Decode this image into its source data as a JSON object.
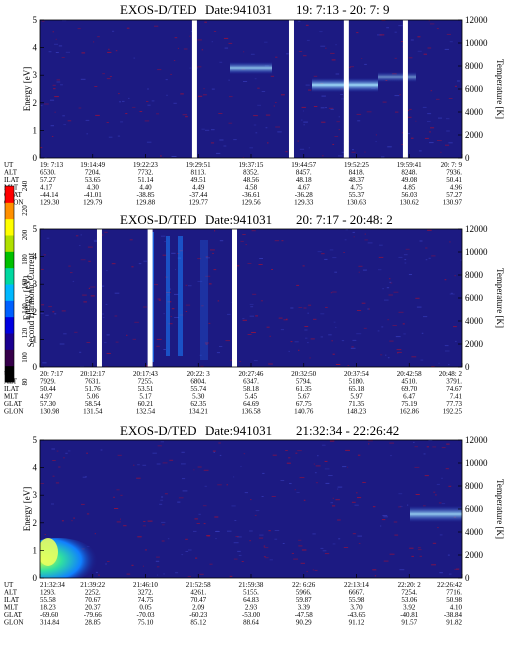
{
  "panels": [
    {
      "title": "EXOS-D/TED",
      "date_label": "Date:941031",
      "time_range": "19: 7:13 - 20: 7: 9",
      "ylabel_left": "Energy [eV]",
      "ylabel_right": "Temperature [K]",
      "ylim": [
        0,
        5
      ],
      "yticks_left": [
        "0",
        "1",
        "2",
        "3",
        "4",
        "5"
      ],
      "yticks_right": [
        "0",
        "2000",
        "4000",
        "6000",
        "8000",
        "10000",
        "12000"
      ],
      "gaps": [
        0.36,
        0.59,
        0.72,
        0.86
      ],
      "table_rows": [
        {
          "label": "UT",
          "values": [
            "19: 7:13",
            "19:14:49",
            "19:22:23",
            "19:29:51",
            "19:37:15",
            "19:44:57",
            "19:52:25",
            "19:59:41",
            "20: 7: 9"
          ]
        },
        {
          "label": "ALT",
          "values": [
            "6530.",
            "7204.",
            "7732.",
            "8113.",
            "8352.",
            "8457.",
            "8418.",
            "8248.",
            "7936."
          ]
        },
        {
          "label": "ILAT",
          "values": [
            "57.27",
            "53.65",
            "51.14",
            "49.51",
            "48.56",
            "48.18",
            "48.37",
            "49.08",
            "50.41"
          ]
        },
        {
          "label": "MLT",
          "values": [
            "4.17",
            "4.30",
            "4.40",
            "4.49",
            "4.58",
            "4.67",
            "4.75",
            "4.85",
            "4.96"
          ]
        },
        {
          "label": "GLAT",
          "values": [
            "-44.14",
            "-41.01",
            "-38.85",
            "-37.44",
            "-36.61",
            "-36.28",
            "55.37",
            "56.03",
            "57.27"
          ]
        },
        {
          "label": "GLON",
          "values": [
            "129.30",
            "129.79",
            "129.88",
            "129.77",
            "129.56",
            "129.33",
            "130.63",
            "130.62",
            "130.97"
          ]
        }
      ]
    },
    {
      "title": "EXOS-D/TED",
      "date_label": "Date:941031",
      "time_range": "20: 7:17 - 20:48: 2",
      "ylabel_left": "Energy [eV]",
      "ylabel_right": "Temperature [K]",
      "ylim": [
        0,
        5
      ],
      "yticks_left": [
        "0",
        "1",
        "2",
        "3",
        "4",
        "5"
      ],
      "yticks_right": [
        "0",
        "2000",
        "4000",
        "6000",
        "8000",
        "10000",
        "12000"
      ],
      "gaps": [
        0.135,
        0.255,
        0.455
      ],
      "table_rows": [
        {
          "label": "UT",
          "values": [
            "20: 7:17",
            "20:12:17",
            "20:17:43",
            "20:22: 3",
            "20:27:46",
            "20:32:50",
            "20:37:54",
            "20:42:58",
            "20:48: 2"
          ]
        },
        {
          "label": "ALT",
          "values": [
            "7929.",
            "7631.",
            "7255.",
            "6804.",
            "6347.",
            "5794.",
            "5180.",
            "4510.",
            "3791."
          ]
        },
        {
          "label": "ILAT",
          "values": [
            "50.44",
            "51.76",
            "53.51",
            "55.74",
            "58.18",
            "61.35",
            "65.18",
            "69.70",
            "74.67"
          ]
        },
        {
          "label": "MLT",
          "values": [
            "4.97",
            "5.06",
            "5.17",
            "5.30",
            "5.45",
            "5.67",
            "5.97",
            "6.47",
            "7.41"
          ]
        },
        {
          "label": "GLAT",
          "values": [
            "57.30",
            "58.54",
            "60.21",
            "62.35",
            "64.69",
            "67.75",
            "71.35",
            "75.19",
            "77.73"
          ]
        },
        {
          "label": "GLON",
          "values": [
            "130.98",
            "131.54",
            "132.54",
            "134.21",
            "136.58",
            "140.76",
            "148.23",
            "162.86",
            "192.25"
          ]
        }
      ]
    },
    {
      "title": "EXOS-D/TED",
      "date_label": "Date:941031",
      "time_range": "21:32:34 - 22:26:42",
      "ylabel_left": "Energy [eV]",
      "ylabel_right": "Temperature [K]",
      "ylim": [
        0,
        5
      ],
      "yticks_left": [
        "0",
        "1",
        "2",
        "3",
        "4",
        "5"
      ],
      "yticks_right": [
        "0",
        "2000",
        "4000",
        "6000",
        "8000",
        "10000",
        "12000"
      ],
      "gaps": [],
      "table_rows": [
        {
          "label": "UT",
          "values": [
            "21:32:34",
            "21:39:22",
            "21:46:10",
            "21:52:58",
            "21:59:38",
            "22: 6:26",
            "22:13:14",
            "22:20: 2",
            "22:26:42"
          ]
        },
        {
          "label": "ALT",
          "values": [
            "1293.",
            "2252.",
            "3272.",
            "4261.",
            "5155.",
            "5966.",
            "6667.",
            "7254.",
            "7716."
          ]
        },
        {
          "label": "ILAT",
          "values": [
            "55.58",
            "70.67",
            "74.75",
            "70.47",
            "64.83",
            "59.87",
            "55.98",
            "53.06",
            "50.98"
          ]
        },
        {
          "label": "MLT",
          "values": [
            "18.23",
            "20.37",
            "0.05",
            "2.09",
            "2.93",
            "3.39",
            "3.70",
            "3.92",
            "4.10"
          ]
        },
        {
          "label": "GLAT",
          "values": [
            "-69.60",
            "-79.66",
            "-70.03",
            "-60.23",
            "-53.00",
            "-47.58",
            "-43.65",
            "-40.81",
            "-38.84"
          ]
        },
        {
          "label": "GLON",
          "values": [
            "314.84",
            "28.85",
            "75.10",
            "85.12",
            "88.64",
            "90.29",
            "91.12",
            "91.57",
            "91.82"
          ]
        }
      ]
    }
  ],
  "colorbar": {
    "label": "Second Harmonic Current",
    "ticks": [
      "80",
      "100",
      "120",
      "140",
      "160",
      "180",
      "200",
      "220",
      "240"
    ],
    "stops": [
      "#000000",
      "#36004a",
      "#1a0090",
      "#0000e0",
      "#0060ff",
      "#00b8ff",
      "#00d8a0",
      "#00c000",
      "#b0e000",
      "#ffff00",
      "#ff9000",
      "#ff0000"
    ]
  },
  "colors": {
    "background": "#1c1a82",
    "gap": "#ffffff",
    "ion_band": "#a8e8ff",
    "noise": "#b01030"
  }
}
